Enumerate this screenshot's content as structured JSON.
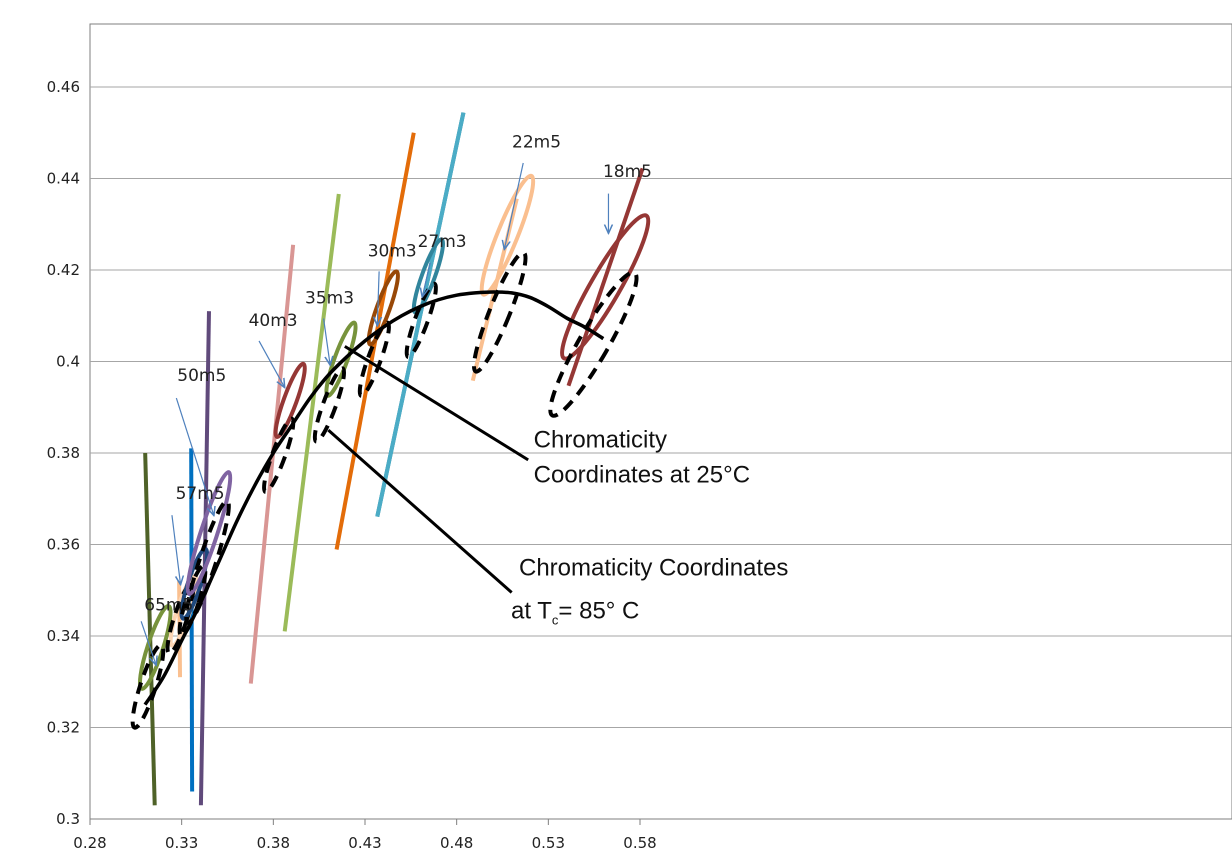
{
  "chart_data": {
    "type": "line",
    "title": "",
    "xlabel": "",
    "ylabel": "",
    "xlim": [
      0.28,
      0.58
    ],
    "ylim": [
      0.3,
      0.47
    ],
    "x_ticks": [
      0.28,
      0.33,
      0.38,
      0.43,
      0.48,
      0.53,
      0.58
    ],
    "x_tick_labels": [
      "0.28",
      "0.33",
      "0.38",
      "0.43",
      "0.48",
      "0.53",
      "0.58"
    ],
    "y_ticks": [
      0.3,
      0.32,
      0.34,
      0.36,
      0.38,
      0.4,
      0.42,
      0.44,
      0.46
    ],
    "y_tick_labels": [
      "0.3",
      "0.32",
      "0.34",
      "0.36",
      "0.38",
      "0.4",
      "0.42",
      "0.44",
      "0.46"
    ],
    "grid": "horizontal",
    "colors": {
      "curve": "#000000",
      "grid": "#a6a6a6",
      "axis": "#7f7f7f",
      "arrow": "#4f81bd",
      "dashed_ellipse": "#000000"
    },
    "curve": {
      "x": [
        0.31,
        0.32,
        0.33,
        0.34,
        0.35,
        0.36,
        0.37,
        0.38,
        0.39,
        0.4,
        0.41,
        0.42,
        0.43,
        0.44,
        0.45,
        0.46,
        0.47,
        0.48,
        0.49,
        0.5,
        0.51,
        0.52,
        0.53,
        0.54,
        0.55,
        0.56
      ],
      "y": [
        0.325,
        0.331,
        0.339,
        0.347,
        0.356,
        0.365,
        0.373,
        0.38,
        0.386,
        0.392,
        0.397,
        0.401,
        0.4045,
        0.4075,
        0.41,
        0.412,
        0.4135,
        0.4145,
        0.415,
        0.4152,
        0.415,
        0.414,
        0.412,
        0.4095,
        0.4075,
        0.405
      ]
    },
    "series": [
      {
        "name": "65m5",
        "color": "#4f6228",
        "line": [
          [
            0.3101,
            0.38
          ],
          [
            0.3153,
            0.303
          ]
        ],
        "ellipse_25": {
          "cx": 0.3156,
          "cy": 0.3375,
          "rx": 0.0042,
          "ry": 0.0095,
          "rot": 18,
          "color": "#77933c"
        },
        "ellipse_85": {
          "cx": 0.3116,
          "cy": 0.329,
          "rx": 0.0042,
          "ry": 0.0095,
          "rot": 18
        },
        "label": {
          "text": "65m5",
          "x": 0.3096,
          "y": 0.3456
        },
        "arrow": [
          [
            0.3079,
            0.3432
          ],
          [
            0.3161,
            0.3336
          ]
        ]
      },
      {
        "name": "57m5",
        "color": "#fac090",
        "line": [
          [
            0.3286,
            0.352
          ],
          [
            0.3291,
            0.331
          ]
        ],
        "ellipse_25": {
          "cx": 0.331,
          "cy": 0.3455,
          "rx": 0.0035,
          "ry": 0.008,
          "rot": 18,
          "color": "#fcd5b4"
        },
        "ellipse_85": {
          "cx": 0.3293,
          "cy": 0.3438,
          "rx": 0.0035,
          "ry": 0.008,
          "rot": 18
        },
        "label": {
          "text": "57m5",
          "x": 0.3267,
          "y": 0.3699
        },
        "arrow": [
          [
            0.3247,
            0.3664
          ],
          [
            0.3294,
            0.3512
          ]
        ]
      },
      {
        "name": "57m5-blue",
        "color": "#0070c0",
        "line": [
          [
            0.3352,
            0.381
          ],
          [
            0.3357,
            0.306
          ]
        ],
        "ellipse_25": {
          "cx": 0.3369,
          "cy": 0.3514,
          "rx": 0.0035,
          "ry": 0.008,
          "rot": 18,
          "color": "#1f497d"
        },
        "ellipse_85": {
          "cx": 0.3359,
          "cy": 0.3477,
          "rx": 0.0035,
          "ry": 0.008,
          "rot": 18
        }
      },
      {
        "name": "50m5",
        "color": "#604a7b",
        "line": [
          [
            0.3449,
            0.411
          ],
          [
            0.3405,
            0.303
          ]
        ],
        "ellipse_25": {
          "cx": 0.3449,
          "cy": 0.3625,
          "rx": 0.0045,
          "ry": 0.014,
          "rot": 18,
          "color": "#8064a2"
        },
        "ellipse_85": {
          "cx": 0.3441,
          "cy": 0.3562,
          "rx": 0.0045,
          "ry": 0.014,
          "rot": 18
        },
        "label": {
          "text": "50m5",
          "x": 0.3276,
          "y": 0.3957
        },
        "arrow": [
          [
            0.3271,
            0.392
          ],
          [
            0.3476,
            0.3663
          ]
        ]
      },
      {
        "name": "40m3",
        "color": "#d99694",
        "line": [
          [
            0.3908,
            0.4255
          ],
          [
            0.3677,
            0.3296
          ]
        ],
        "ellipse_25": {
          "cx": 0.3892,
          "cy": 0.3915,
          "rx": 0.0035,
          "ry": 0.0085,
          "rot": 20,
          "color": "#953735"
        },
        "ellipse_85": {
          "cx": 0.3829,
          "cy": 0.3795,
          "rx": 0.0035,
          "ry": 0.0085,
          "rot": 20
        },
        "label": {
          "text": "40m3",
          "x": 0.3665,
          "y": 0.4078
        },
        "arrow": [
          [
            0.3722,
            0.4045
          ],
          [
            0.3862,
            0.3943
          ]
        ]
      },
      {
        "name": "35m3",
        "color": "#9bbb59",
        "line": [
          [
            0.4157,
            0.4366
          ],
          [
            0.3862,
            0.341
          ]
        ],
        "ellipse_25": {
          "cx": 0.4169,
          "cy": 0.4005,
          "rx": 0.0035,
          "ry": 0.0085,
          "rot": 20,
          "color": "#77933c"
        },
        "ellipse_85": {
          "cx": 0.4106,
          "cy": 0.3905,
          "rx": 0.0035,
          "ry": 0.0085,
          "rot": 20
        },
        "label": {
          "text": "35m3",
          "x": 0.3973,
          "y": 0.4127
        },
        "arrow": [
          [
            0.4074,
            0.4094
          ],
          [
            0.411,
            0.3992
          ]
        ]
      },
      {
        "name": "30m3",
        "color": "#e36c09",
        "line": [
          [
            0.4566,
            0.45
          ],
          [
            0.4145,
            0.3589
          ]
        ],
        "ellipse_25": {
          "cx": 0.44,
          "cy": 0.4117,
          "rx": 0.0035,
          "ry": 0.0085,
          "rot": 20,
          "color": "#984807"
        },
        "ellipse_85": {
          "cx": 0.4351,
          "cy": 0.4005,
          "rx": 0.0035,
          "ry": 0.0085,
          "rot": 20
        },
        "label": {
          "text": "30m3",
          "x": 0.4315,
          "y": 0.423
        },
        "arrow": [
          [
            0.4377,
            0.4197
          ],
          [
            0.4367,
            0.4078
          ]
        ]
      },
      {
        "name": "27m3",
        "color": "#31859c",
        "line": [
          [
            0.4837,
            0.4544
          ],
          [
            0.4367,
            0.3661
          ]
        ],
        "ellipse_25": {
          "cx": 0.4646,
          "cy": 0.4187,
          "rx": 0.0035,
          "ry": 0.0085,
          "rot": 20,
          "color": "#31859c"
        },
        "ellipse_85": {
          "cx": 0.4607,
          "cy": 0.409,
          "rx": 0.0035,
          "ry": 0.0085,
          "rot": 20
        },
        "label": {
          "text": "27m3",
          "x": 0.4587,
          "y": 0.425
        },
        "arrow": [
          [
            0.4656,
            0.4216
          ],
          [
            0.4612,
            0.4141
          ]
        ]
      },
      {
        "name": "27m3-light",
        "color": "#4bacc6",
        "line": [
          [
            0.4837,
            0.4544
          ],
          [
            0.4367,
            0.3661
          ]
        ]
      },
      {
        "name": "22m5",
        "color": "#fabf8f",
        "line": [
          [
            0.5128,
            0.4356
          ],
          [
            0.4888,
            0.3958
          ]
        ],
        "ellipse_25": {
          "cx": 0.5077,
          "cy": 0.4276,
          "rx": 0.0055,
          "ry": 0.014,
          "rot": 22,
          "color": "#fabf8f"
        },
        "ellipse_85": {
          "cx": 0.5035,
          "cy": 0.4108,
          "rx": 0.0055,
          "ry": 0.014,
          "rot": 22
        },
        "label": {
          "text": "22m5",
          "x": 0.5102,
          "y": 0.4468
        },
        "arrow": [
          [
            0.5163,
            0.4434
          ],
          [
            0.506,
            0.4245
          ]
        ]
      },
      {
        "name": "18m5",
        "color": "#953735",
        "line": [
          [
            0.5814,
            0.4422
          ],
          [
            0.541,
            0.3947
          ]
        ],
        "ellipse_25": {
          "cx": 0.561,
          "cy": 0.4163,
          "rx": 0.008,
          "ry": 0.018,
          "rot": 30,
          "color": "#953735"
        },
        "ellipse_85": {
          "cx": 0.5546,
          "cy": 0.4038,
          "rx": 0.008,
          "ry": 0.018,
          "rot": 30
        },
        "label": {
          "text": "18m5",
          "x": 0.5598,
          "y": 0.4403
        },
        "arrow": [
          [
            0.5628,
            0.4367
          ],
          [
            0.5628,
            0.428
          ]
        ]
      }
    ],
    "annotations": [
      {
        "text": "Chromaticity",
        "text2": "Coordinates at 25°C",
        "label_x": 0.522,
        "label_y": 0.3812,
        "line": [
          [
            0.419,
            0.4033
          ],
          [
            0.519,
            0.3785
          ]
        ]
      },
      {
        "text": "Chromaticity Coordinates",
        "text2_pre": "at T",
        "text2_sub": "c",
        "text2_post": "= 85° C",
        "label_x": 0.514,
        "label_y": 0.3532,
        "line": [
          [
            0.41,
            0.385
          ],
          [
            0.51,
            0.3495
          ]
        ]
      }
    ]
  }
}
